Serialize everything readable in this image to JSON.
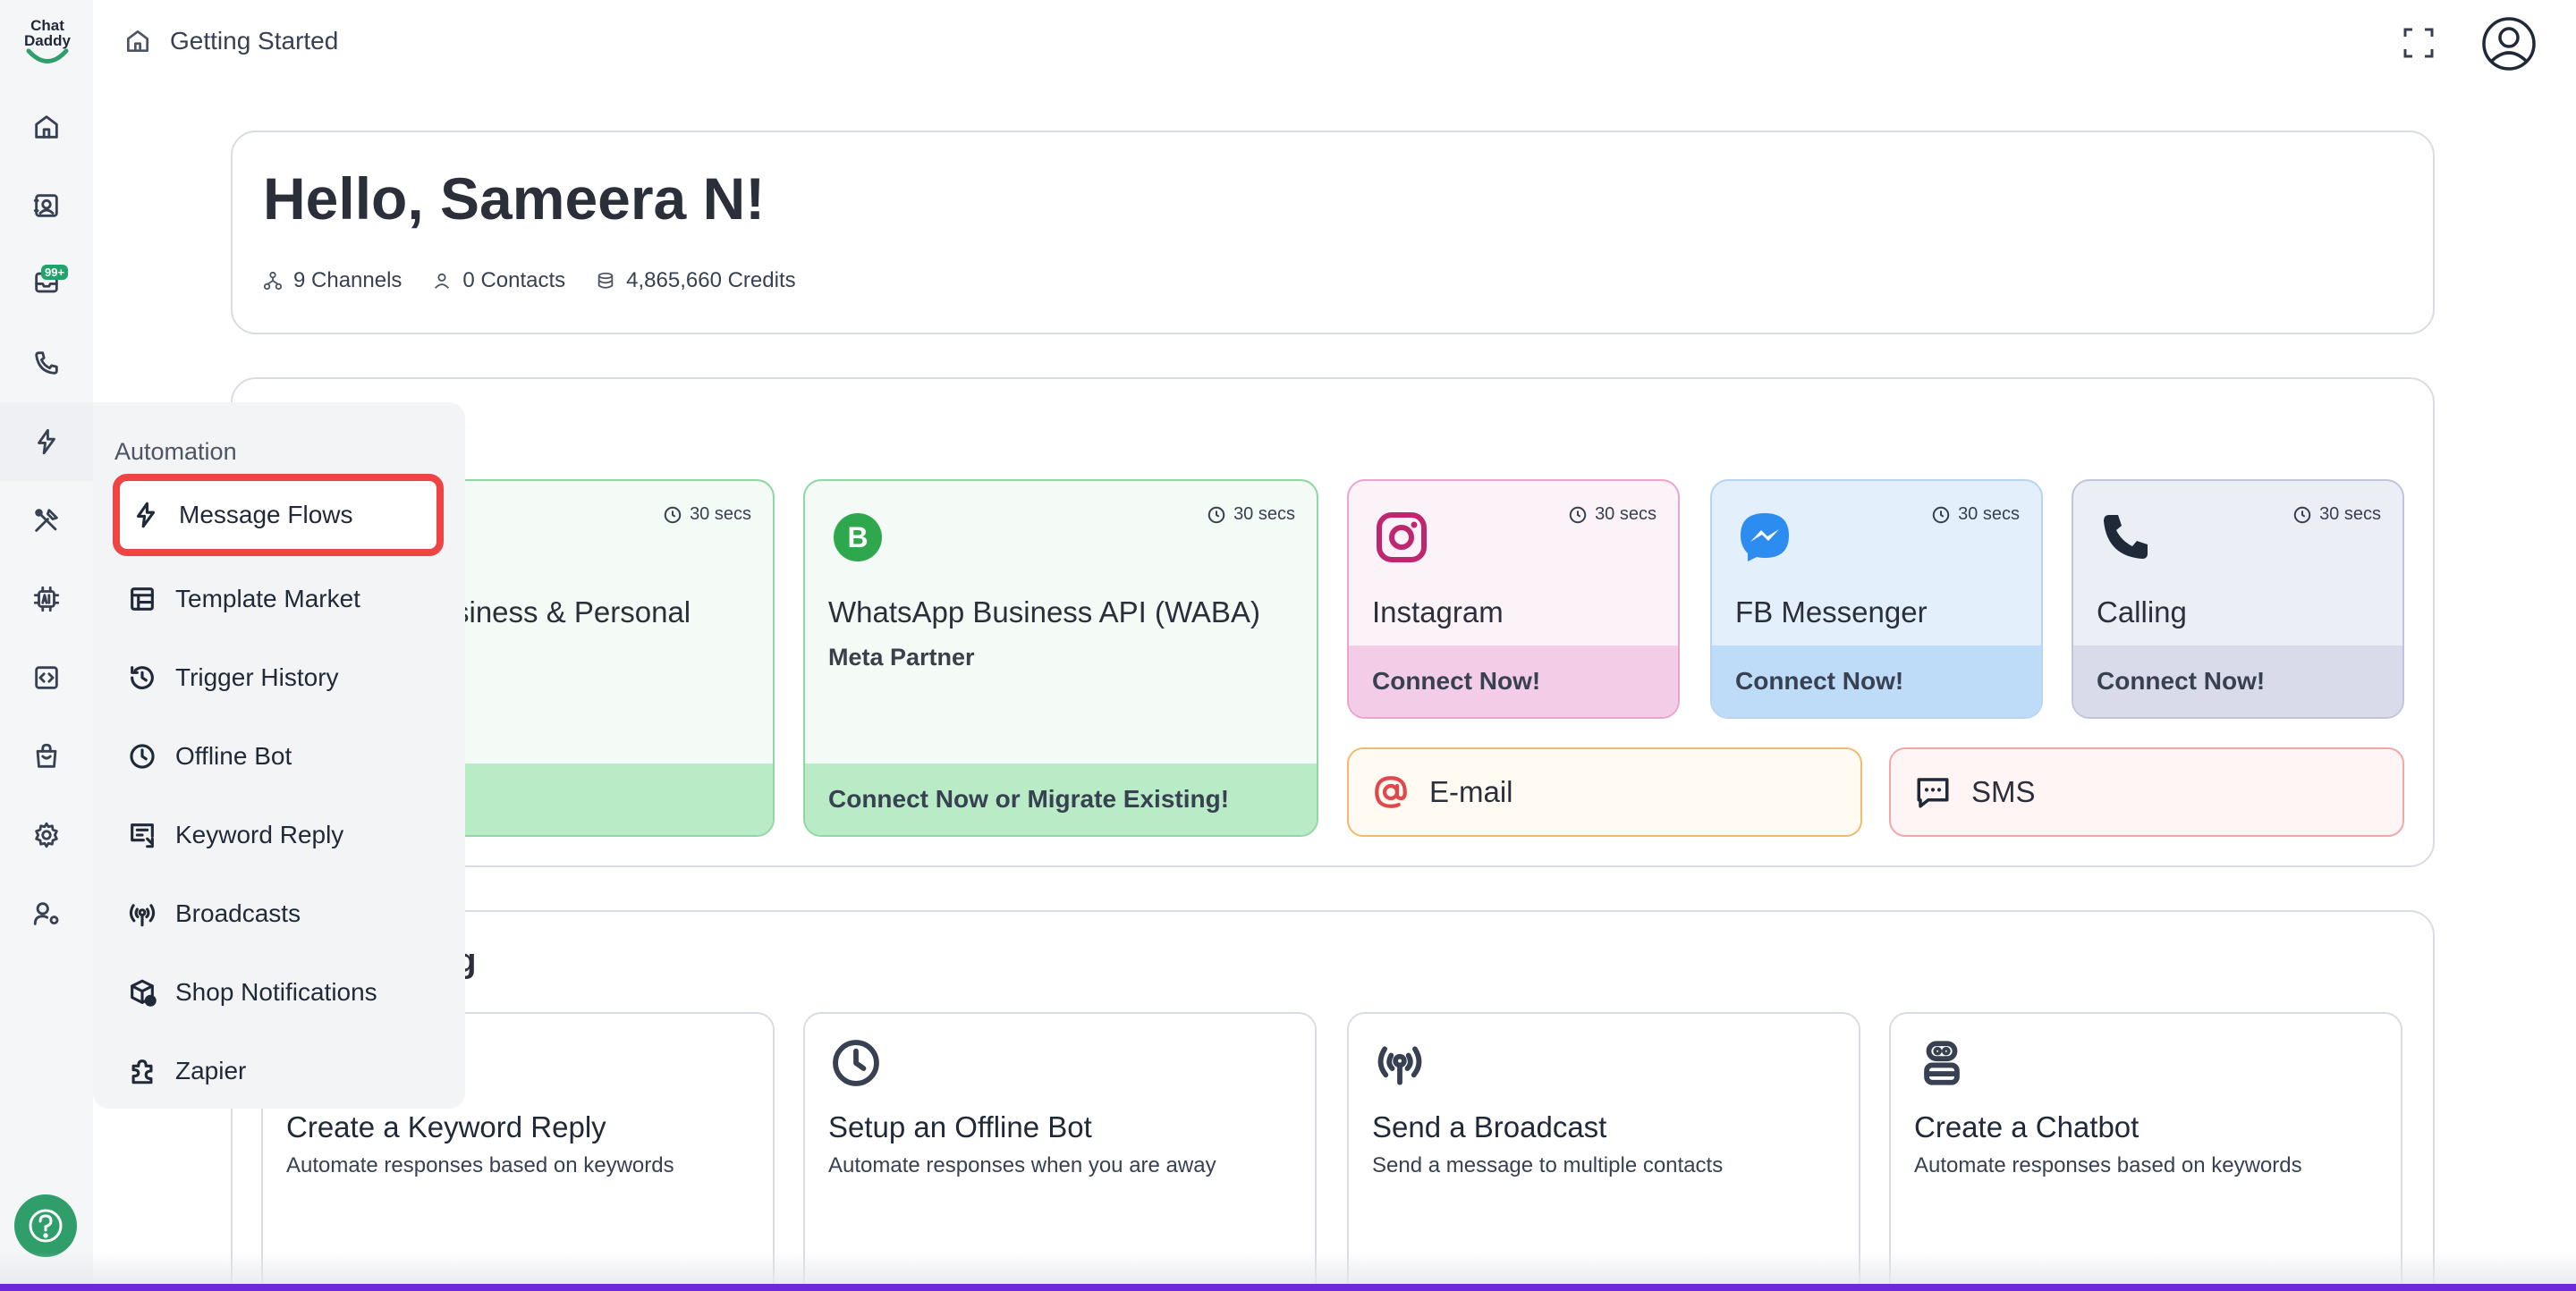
{
  "brand": {
    "logo_text_1": "Chat",
    "logo_text_2": "Daddy",
    "accent": "#2f9e6a"
  },
  "header": {
    "breadcrumb": "Getting Started"
  },
  "sidebar": {
    "inbox_badge": "99+"
  },
  "greeting": {
    "title": "Hello, Sameera N!",
    "channels": "9 Channels",
    "contacts": "0 Contacts",
    "credits": "4,865,660 Credits"
  },
  "channels": {
    "whatsapp_personal": {
      "name_visible": "siness & Personal"
    },
    "waba": {
      "time": "30 secs",
      "name": "WhatsApp Business API (WABA)",
      "sub": "Meta Partner",
      "cta": "Connect Now or Migrate Existing!"
    },
    "instagram": {
      "time": "30 secs",
      "name": "Instagram",
      "cta": "Connect Now!"
    },
    "messenger": {
      "time": "30 secs",
      "name": "FB Messenger",
      "cta": "Connect Now!"
    },
    "calling": {
      "time": "30 secs",
      "name": "Calling",
      "cta": "Connect Now!"
    },
    "personal_time": "30 secs",
    "email": "E-mail",
    "sms": "SMS"
  },
  "getting_started": {
    "title_visible": "ng",
    "actions": [
      {
        "title": "Create a Keyword Reply",
        "desc": "Automate responses based on keywords"
      },
      {
        "title": "Setup an Offline Bot",
        "desc": "Automate responses when you are away"
      },
      {
        "title": "Send a Broadcast",
        "desc": "Send a message to multiple contacts"
      },
      {
        "title": "Create a Chatbot",
        "desc": "Automate responses based on keywords"
      }
    ]
  },
  "automation_menu": {
    "title": "Automation",
    "items": [
      {
        "label": "Message Flows",
        "icon": "bolt-icon"
      },
      {
        "label": "Template Market",
        "icon": "template-icon"
      },
      {
        "label": "Trigger History",
        "icon": "history-icon"
      },
      {
        "label": "Offline Bot",
        "icon": "clock-icon"
      },
      {
        "label": "Keyword Reply",
        "icon": "keyword-icon"
      },
      {
        "label": "Broadcasts",
        "icon": "broadcast-icon"
      },
      {
        "label": "Shop Notifications",
        "icon": "box-icon"
      },
      {
        "label": "Zapier",
        "icon": "puzzle-icon"
      }
    ]
  }
}
